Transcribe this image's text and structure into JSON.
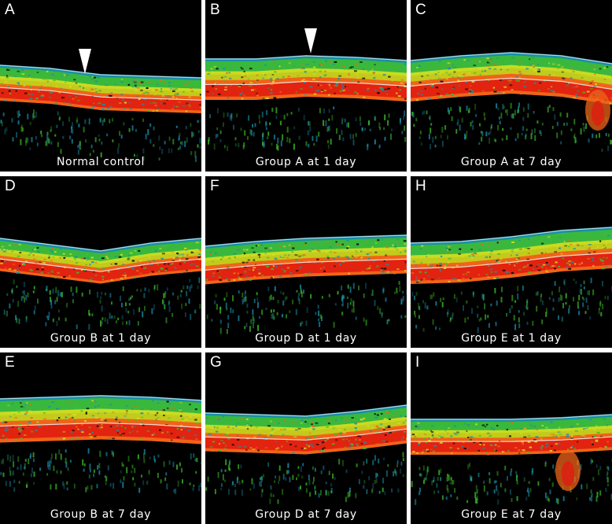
{
  "colors": {
    "background": "#000000",
    "separator": "#ffffff",
    "cyan": "#1b8ea8",
    "green": "#3fbf2a",
    "yellow": "#d8e020",
    "orange": "#f06418",
    "red": "#e01c10",
    "white_line": "#f4f4f4"
  },
  "panels": [
    {
      "letter": "A",
      "caption": "Normal control",
      "arrowhead": true
    },
    {
      "letter": "B",
      "caption": "Group A at 1 day",
      "arrowhead": true
    },
    {
      "letter": "C",
      "caption": "Group A at 7 day",
      "arrowhead": false
    },
    {
      "letter": "D",
      "caption": "Group B at 1 day",
      "arrowhead": false
    },
    {
      "letter": "F",
      "caption": "Group D at 1 day",
      "arrowhead": false
    },
    {
      "letter": "H",
      "caption": "Group E at 1 day",
      "arrowhead": false
    },
    {
      "letter": "E",
      "caption": "Group B at 7 day",
      "arrowhead": false
    },
    {
      "letter": "G",
      "caption": "Group D at 7 day",
      "arrowhead": false
    },
    {
      "letter": "I",
      "caption": "Group E at 7 day",
      "arrowhead": false
    }
  ]
}
